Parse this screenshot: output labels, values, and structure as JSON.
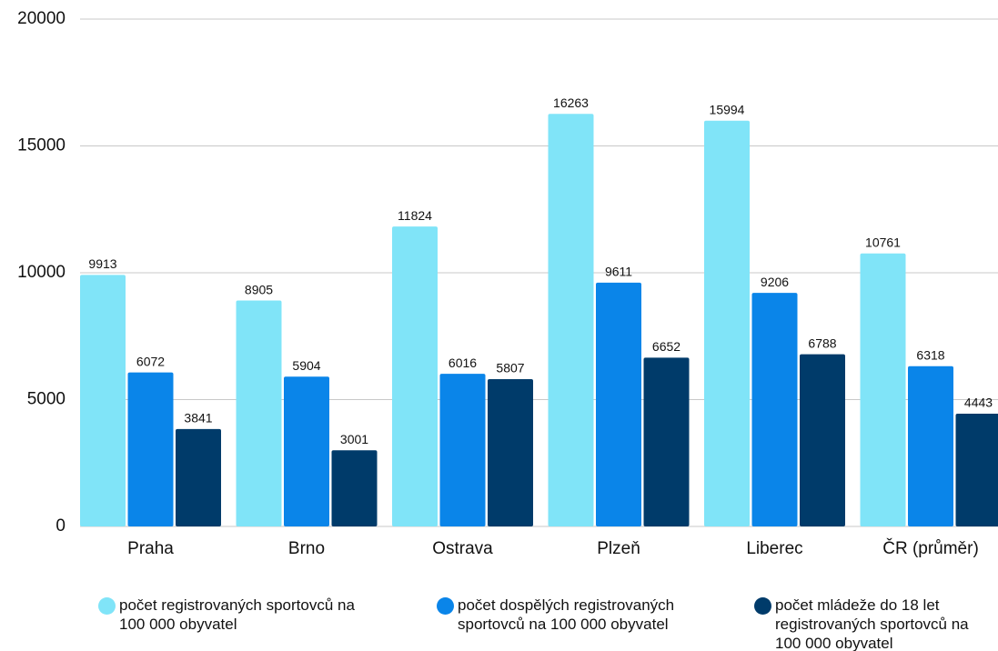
{
  "chart_data": {
    "type": "bar",
    "categories": [
      "Praha",
      "Brno",
      "Ostrava",
      "Plzeň",
      "Liberec",
      "ČR (průměr)"
    ],
    "series": [
      {
        "name": "počet registrovaných sportovců na 100 000 obyvatel",
        "color": "#80e4f8",
        "values": [
          9913,
          8905,
          11824,
          16263,
          15994,
          10761
        ]
      },
      {
        "name": "počet dospělých registrovaných sportovců na 100 000 obyvatel",
        "color": "#0a85e9",
        "values": [
          6072,
          5904,
          6016,
          9611,
          9206,
          6318
        ]
      },
      {
        "name": "počet mládeže do 18 let registrovaných sportovců na 100 000 obyvatel",
        "color": "#003b6a",
        "values": [
          3841,
          3001,
          5807,
          6652,
          6788,
          4443
        ]
      }
    ],
    "ylim": [
      0,
      20000
    ],
    "yticks": [
      0,
      5000,
      10000,
      15000,
      20000
    ],
    "grid": true,
    "legend": "bottom"
  }
}
